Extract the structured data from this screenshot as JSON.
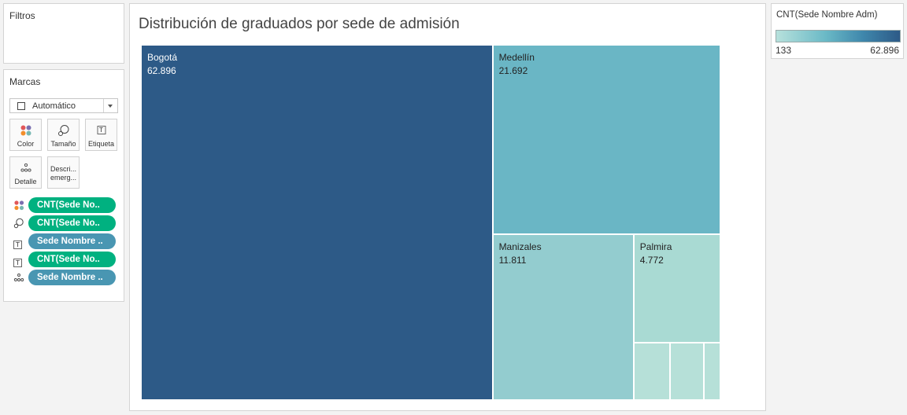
{
  "filters": {
    "title": "Filtros"
  },
  "marks": {
    "title": "Marcas",
    "mark_type": "Automático",
    "buttons": {
      "color": "Color",
      "size": "Tamaño",
      "label": "Etiqueta",
      "detail": "Detalle",
      "tooltip_line1": "Descri...",
      "tooltip_line2": "emerg..."
    },
    "pills": [
      {
        "icon": "color-icon",
        "text": "CNT(Sede No..",
        "kind": "measure"
      },
      {
        "icon": "size-icon",
        "text": "CNT(Sede No..",
        "kind": "measure"
      },
      {
        "icon": "label-icon",
        "text": "Sede Nombre ..",
        "kind": "dimension"
      },
      {
        "icon": "label-icon",
        "text": "CNT(Sede No..",
        "kind": "measure"
      },
      {
        "icon": "detail-icon",
        "text": "Sede Nombre ..",
        "kind": "dimension"
      }
    ]
  },
  "viz": {
    "title": "Distribución de graduados por sede de admisión"
  },
  "legend": {
    "title": "CNT(Sede Nombre Adm)",
    "min": "133",
    "max": "62.896",
    "colors": {
      "low": "#b7e1dc",
      "high": "#2d5a87"
    }
  },
  "chart_data": {
    "type": "treemap",
    "title": "Distribución de graduados por sede de admisión",
    "color_measure": "CNT(Sede Nombre Adm)",
    "color_range": [
      133,
      62896
    ],
    "items": [
      {
        "name": "Bogotá",
        "value": 62896,
        "label": "62.896",
        "color": "#2d5a87"
      },
      {
        "name": "Medellín",
        "value": 21692,
        "label": "21.692",
        "color": "#6ab6c5"
      },
      {
        "name": "Manizales",
        "value": 11811,
        "label": "11.811",
        "color": "#93cccf"
      },
      {
        "name": "Palmira",
        "value": 4772,
        "label": "4.772",
        "color": "#a9dad3"
      },
      {
        "name": "",
        "value": 1050,
        "label": "",
        "color": "#b6e0d8"
      },
      {
        "name": "",
        "value": 960,
        "label": "",
        "color": "#b6e0d8"
      },
      {
        "name": "",
        "value": 480,
        "label": "",
        "color": "#b6e0d8"
      }
    ]
  }
}
